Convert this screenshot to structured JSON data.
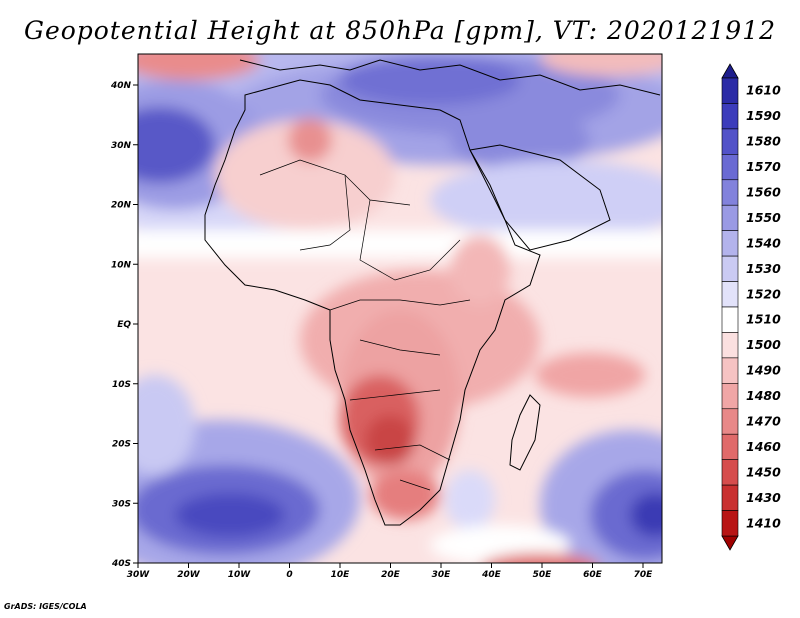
{
  "title": "Geopotential Height at 850hPa [gpm], VT: 2020121912",
  "credit": "GrADS: IGES/COLA",
  "map": {
    "region": "Africa",
    "variable": "Geopotential Height at 850hPa",
    "units": "gpm",
    "valid_time": "2020121912",
    "lon_ticks": [
      "30W",
      "20W",
      "10W",
      "0",
      "10E",
      "20E",
      "30E",
      "40E",
      "50E",
      "60E",
      "70E"
    ],
    "lat_ticks": [
      "40N",
      "30N",
      "20N",
      "10N",
      "EQ",
      "10S",
      "20S",
      "30S",
      "40S"
    ]
  },
  "colorbar": {
    "labels": [
      "1610",
      "1590",
      "1580",
      "1570",
      "1560",
      "1550",
      "1540",
      "1530",
      "1520",
      "1510",
      "1500",
      "1490",
      "1480",
      "1470",
      "1460",
      "1450",
      "1430",
      "1410"
    ],
    "colors": [
      "#2b2ba6",
      "#3c3cbb",
      "#5252c8",
      "#6a6ad3",
      "#8282dc",
      "#9a9ae4",
      "#b3b3ec",
      "#cacaf3",
      "#e2e2fa",
      "#ffffff",
      "#fbe0e0",
      "#f6c3c3",
      "#f0a6a6",
      "#e88888",
      "#e06a6a",
      "#d64d4d",
      "#c93030",
      "#b81414"
    ],
    "top_color": "#1e1e8c",
    "bottom_color": "#a00000"
  }
}
